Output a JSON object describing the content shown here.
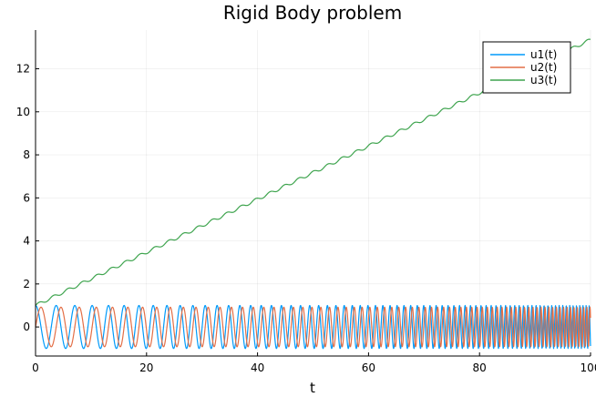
{
  "chart_data": {
    "type": "line",
    "title": "Rigid Body problem",
    "xlabel": "t",
    "ylabel": "",
    "xlim": [
      0,
      100
    ],
    "ylim": [
      -1.35,
      13.8
    ],
    "x_ticks": [
      0,
      20,
      40,
      60,
      80,
      100
    ],
    "y_ticks": [
      0,
      2,
      4,
      6,
      8,
      10,
      12
    ],
    "grid": true,
    "legend_position": "top-right",
    "sample_step": 0.05,
    "series": [
      {
        "name": "u1(t)",
        "color": "#009AFA",
        "model": "chirp-cosine",
        "amplitude": 1.0,
        "start_period": 4.2,
        "end_period": 0.55
      },
      {
        "name": "u2(t)",
        "color": "#E36F47",
        "model": "chirp-sine",
        "amplitude": 0.92,
        "start_period": 4.2,
        "end_period": 0.55
      },
      {
        "name": "u3(t)",
        "color": "#3EA44E",
        "model": "linear-with-ripple",
        "start_value": 1.0,
        "end_value": 13.35,
        "ripple_amplitude": 0.07
      }
    ]
  }
}
